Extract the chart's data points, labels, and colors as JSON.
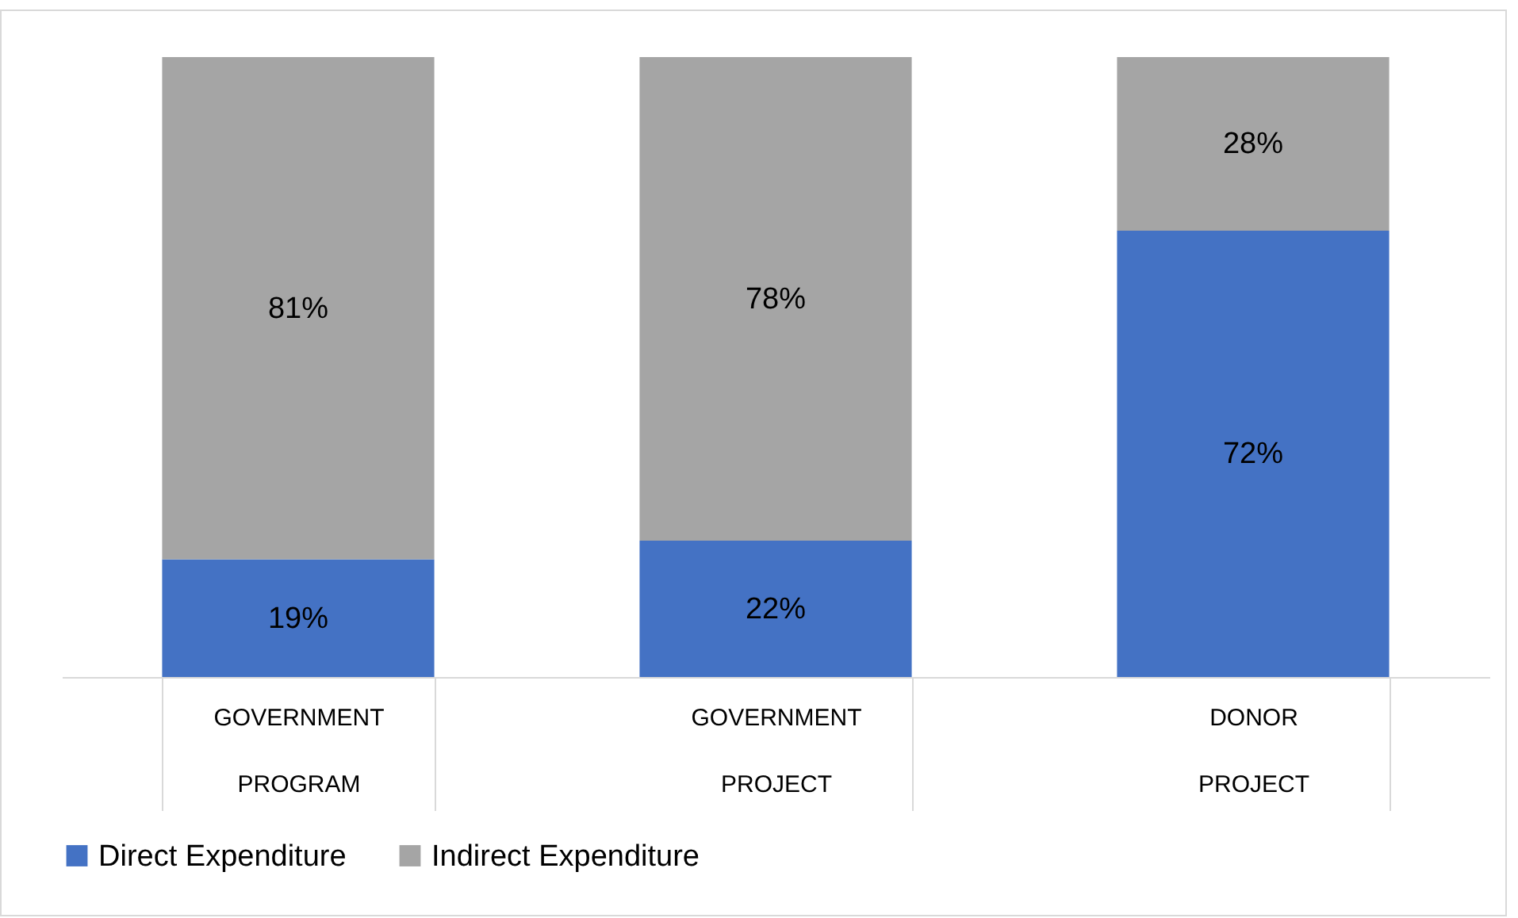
{
  "chart_data": {
    "type": "bar",
    "stacked": true,
    "categories": [
      "GOVERNMENT PROGRAM",
      "GOVERNMENT PROJECT",
      "DONOR PROJECT"
    ],
    "series": [
      {
        "name": "Direct Expenditure",
        "color": "#4472c4",
        "values": [
          19,
          22,
          72
        ],
        "value_labels": [
          "19%",
          "22%",
          "72%"
        ]
      },
      {
        "name": "Indirect Expenditure",
        "color": "#a5a5a5",
        "values": [
          81,
          78,
          28
        ],
        "value_labels": [
          "81%",
          "78%",
          "28%"
        ]
      }
    ],
    "legend": "bottom",
    "grid": false
  }
}
